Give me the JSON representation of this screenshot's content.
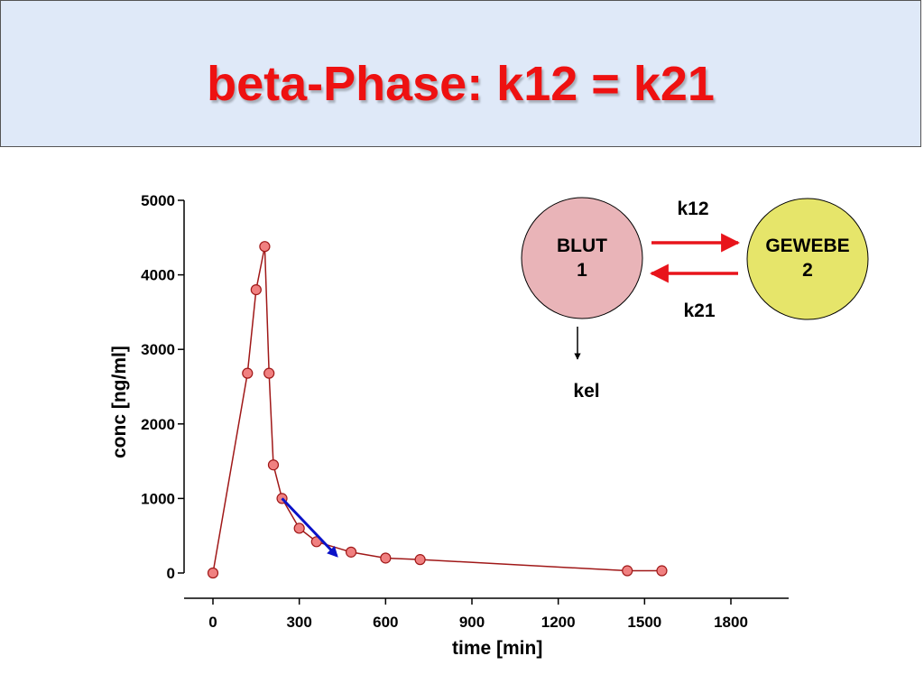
{
  "header": {
    "title": "beta-Phase: k12 = k21"
  },
  "compartments": {
    "blut": {
      "name": "BLUT",
      "number": "1",
      "color": "#e9b4b8"
    },
    "gewebe": {
      "name": "GEWEBE",
      "number": "2",
      "color": "#e6e56a"
    },
    "k12": "k12",
    "k21": "k21",
    "kel": "kel",
    "arrow_color": "#e8141b"
  },
  "chart_data": {
    "type": "line",
    "xlabel": "time [min]",
    "ylabel": "conc [ng/ml]",
    "xlim": [
      0,
      1800
    ],
    "ylim": [
      0,
      5000
    ],
    "xticks": [
      0,
      300,
      600,
      900,
      1200,
      1500,
      1800
    ],
    "yticks": [
      0,
      1000,
      2000,
      3000,
      4000,
      5000
    ],
    "grid": false,
    "series": [
      {
        "x": [
          0,
          120,
          150,
          180,
          195,
          210,
          240,
          300,
          360,
          480,
          600,
          720,
          1440,
          1560
        ],
        "y": [
          0,
          2680,
          3800,
          4380,
          2680,
          1450,
          1000,
          600,
          420,
          280,
          200,
          180,
          30,
          30
        ],
        "line_color": "#a01818",
        "marker_color": "#f08080"
      }
    ],
    "annotations": [
      {
        "type": "arrow",
        "from": [
          240,
          1000
        ],
        "to": [
          430,
          230
        ],
        "color": "#0a12c8"
      }
    ]
  }
}
